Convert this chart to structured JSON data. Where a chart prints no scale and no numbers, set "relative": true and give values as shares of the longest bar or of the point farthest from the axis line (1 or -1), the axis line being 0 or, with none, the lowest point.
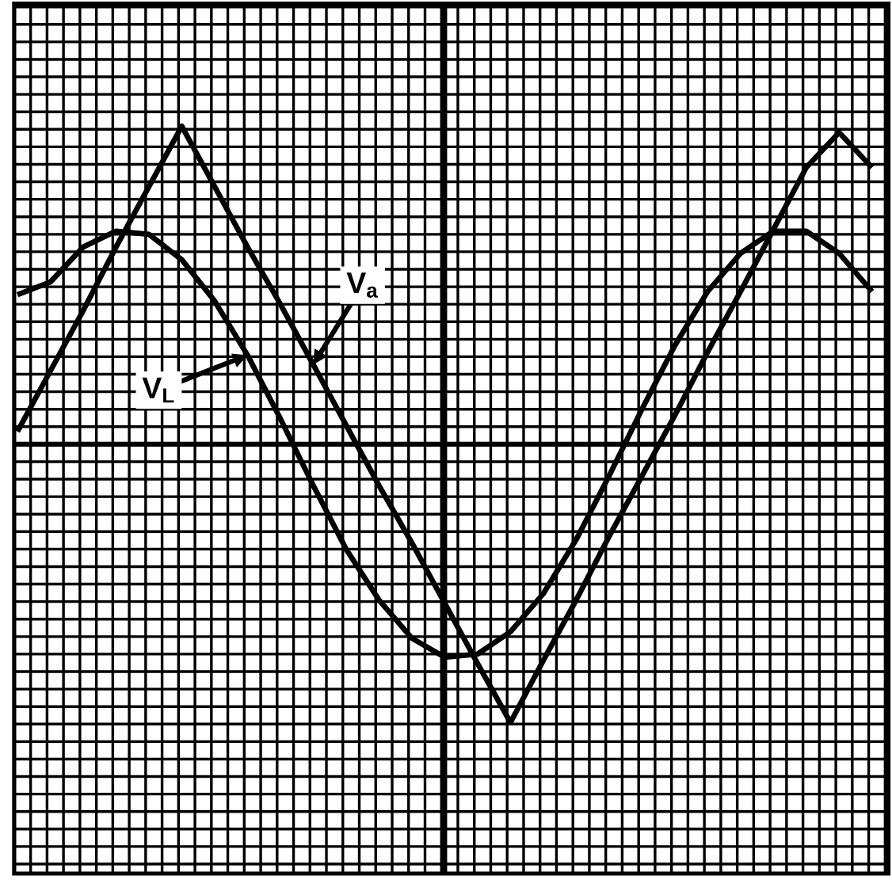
{
  "chart_data": {
    "type": "line",
    "relative": true,
    "grid": true,
    "categories": [
      null,
      null,
      null,
      null,
      null,
      null,
      null,
      null,
      null,
      null,
      null,
      null,
      null,
      null,
      null,
      null,
      null,
      null,
      null,
      null,
      null,
      null,
      null,
      null,
      null,
      null,
      null
    ],
    "series": [
      {
        "name": "V$_{L}$",
        "color": "#000000",
        "values": [
          0.47,
          0.51,
          0.62,
          0.67,
          0.66,
          0.58,
          0.45,
          0.28,
          0.08,
          -0.13,
          -0.33,
          -0.49,
          -0.61,
          -0.67,
          -0.66,
          -0.59,
          -0.47,
          -0.3,
          -0.1,
          0.11,
          0.31,
          0.48,
          0.6,
          0.67,
          0.67,
          0.6,
          0.48
        ]
      },
      {
        "name": "V$_{a}$",
        "color": "#000000",
        "values": [
          0.04,
          0.23,
          0.42,
          0.62,
          0.81,
          1.0,
          0.81,
          0.62,
          0.44,
          0.25,
          0.06,
          -0.13,
          -0.31,
          -0.5,
          -0.69,
          -0.875,
          -0.68,
          -0.49,
          -0.29,
          -0.1,
          0.09,
          0.29,
          0.48,
          0.675,
          0.87,
          0.98,
          0.87
        ]
      }
    ]
  }
}
